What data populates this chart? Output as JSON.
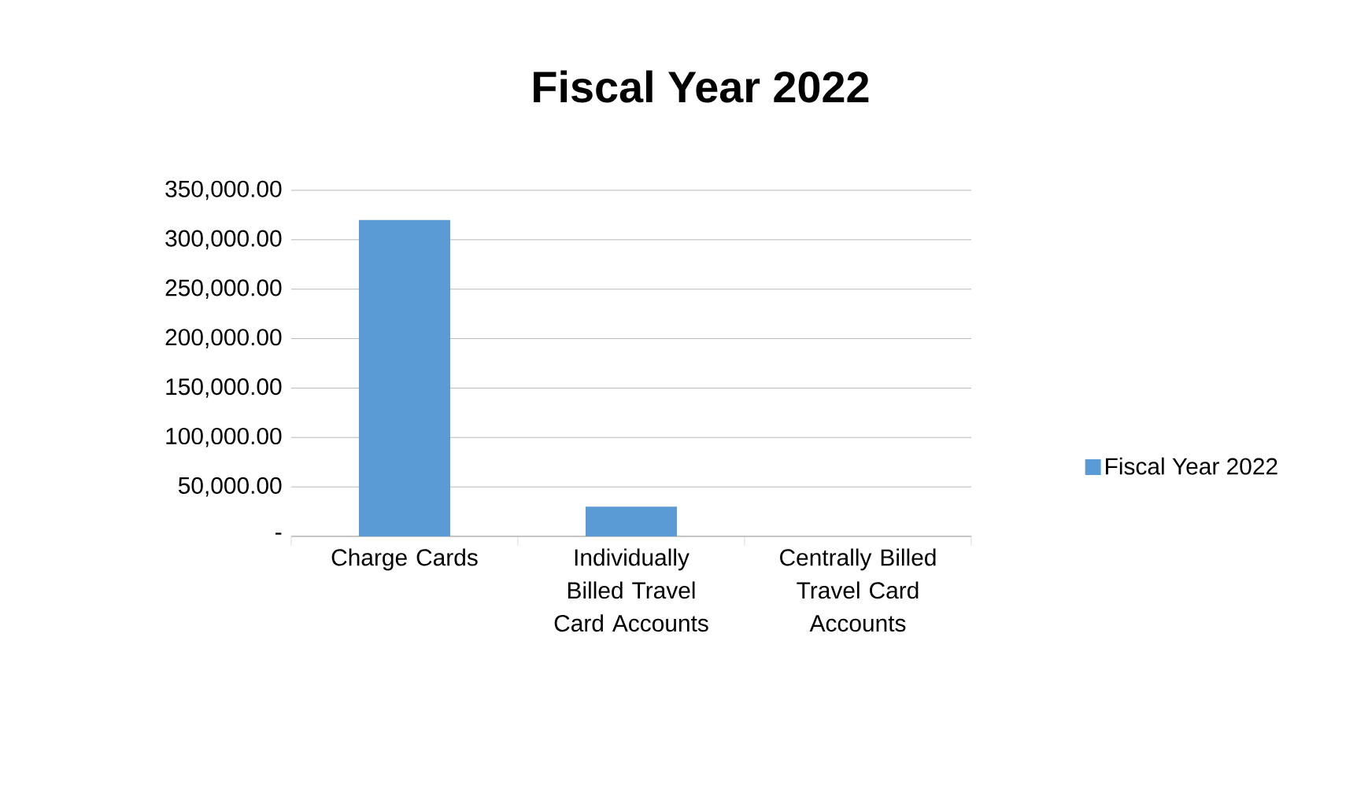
{
  "chart_data": {
    "type": "bar",
    "title": "Fiscal Year 2022",
    "categories": [
      "Charge Cards",
      "Individually Billed Travel Card Accounts",
      "Centrally Billed Travel Card Accounts"
    ],
    "series": [
      {
        "name": "Fiscal Year 2022",
        "color": "#5b9bd5",
        "values": [
          320000,
          30000,
          0
        ]
      }
    ],
    "ylim": [
      0,
      350000
    ],
    "yticks": [
      {
        "value": 0,
        "label": "-"
      },
      {
        "value": 50000,
        "label": "50,000.00"
      },
      {
        "value": 100000,
        "label": "100,000.00"
      },
      {
        "value": 150000,
        "label": "150,000.00"
      },
      {
        "value": 200000,
        "label": "200,000.00"
      },
      {
        "value": 250000,
        "label": "250,000.00"
      },
      {
        "value": 300000,
        "label": "300,000.00"
      },
      {
        "value": 350000,
        "label": "350,000.00"
      }
    ],
    "grid": "y",
    "legend": "right"
  }
}
